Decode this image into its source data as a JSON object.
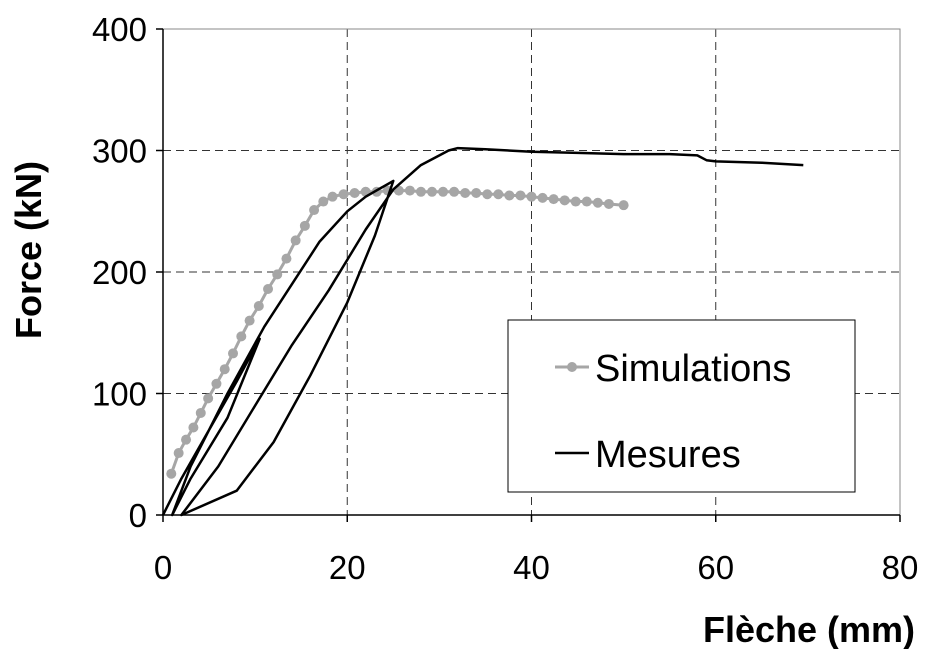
{
  "chart_data": {
    "type": "line",
    "xlabel": "Flèche (mm)",
    "ylabel": "Force (kN)",
    "xlim": [
      0,
      80
    ],
    "ylim": [
      0,
      400
    ],
    "x_ticks": [
      "0",
      "20",
      "40",
      "60",
      "80"
    ],
    "y_ticks": [
      "0",
      "100",
      "200",
      "300",
      "400"
    ],
    "grid": true,
    "legend_position": "right-center",
    "series": [
      {
        "name": "Simulations",
        "style": "line-with-markers",
        "color": "#a6a6a6",
        "points": [
          [
            0.9,
            34
          ],
          [
            1.7,
            51
          ],
          [
            2.5,
            62
          ],
          [
            3.3,
            72
          ],
          [
            4.1,
            84
          ],
          [
            4.9,
            96
          ],
          [
            5.8,
            108
          ],
          [
            6.7,
            120
          ],
          [
            7.6,
            133
          ],
          [
            8.5,
            147
          ],
          [
            9.4,
            160
          ],
          [
            10.4,
            172
          ],
          [
            11.4,
            186
          ],
          [
            12.4,
            198
          ],
          [
            13.4,
            211
          ],
          [
            14.4,
            226
          ],
          [
            15.4,
            238
          ],
          [
            16.4,
            251
          ],
          [
            17.4,
            258
          ],
          [
            18.4,
            262
          ],
          [
            19.6,
            264
          ],
          [
            20.8,
            265
          ],
          [
            22,
            266
          ],
          [
            23.2,
            266
          ],
          [
            24.4,
            267
          ],
          [
            25.6,
            267
          ],
          [
            26.8,
            267
          ],
          [
            28,
            266
          ],
          [
            29.2,
            266
          ],
          [
            30.4,
            266
          ],
          [
            31.6,
            266
          ],
          [
            32.8,
            265
          ],
          [
            34,
            265
          ],
          [
            35.2,
            264
          ],
          [
            36.4,
            264
          ],
          [
            37.6,
            263
          ],
          [
            38.8,
            263
          ],
          [
            40,
            262
          ],
          [
            41.2,
            261
          ],
          [
            42.4,
            260
          ],
          [
            43.6,
            259
          ],
          [
            44.8,
            258
          ],
          [
            46,
            258
          ],
          [
            47.2,
            257
          ],
          [
            48.4,
            256
          ],
          [
            50,
            255
          ]
        ]
      },
      {
        "name": "Mesures",
        "style": "line",
        "color": "#000000",
        "points": [
          [
            0,
            0
          ],
          [
            2,
            30
          ],
          [
            5,
            70
          ],
          [
            8,
            110
          ],
          [
            10.5,
            145
          ],
          [
            7,
            80
          ],
          [
            3,
            30
          ],
          [
            1,
            0
          ],
          [
            3,
            40
          ],
          [
            7,
            100
          ],
          [
            11,
            155
          ],
          [
            14,
            190
          ],
          [
            17,
            225
          ],
          [
            20,
            250
          ],
          [
            22,
            262
          ],
          [
            25,
            275
          ],
          [
            23,
            230
          ],
          [
            20,
            175
          ],
          [
            16,
            115
          ],
          [
            12,
            60
          ],
          [
            8,
            20
          ],
          [
            2,
            0
          ],
          [
            6,
            40
          ],
          [
            10,
            90
          ],
          [
            14,
            140
          ],
          [
            18,
            185
          ],
          [
            22,
            235
          ],
          [
            25,
            268
          ],
          [
            28,
            288
          ],
          [
            30,
            296
          ],
          [
            31,
            300
          ],
          [
            32,
            302
          ],
          [
            35,
            301
          ],
          [
            40,
            299
          ],
          [
            45,
            298
          ],
          [
            50,
            297
          ],
          [
            55,
            297
          ],
          [
            58,
            296
          ],
          [
            59,
            292
          ],
          [
            60,
            291
          ],
          [
            65,
            290
          ],
          [
            69.5,
            288
          ]
        ]
      }
    ]
  }
}
